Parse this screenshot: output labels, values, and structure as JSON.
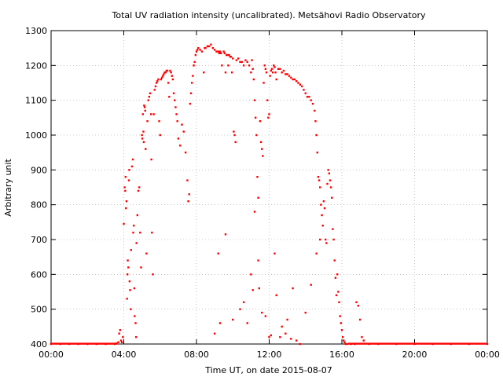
{
  "chart_data": {
    "type": "scatter",
    "title": "Total UV radiation intensity (uncalibrated). Metsähovi Radio Observatory",
    "xlabel": "Time UT, on date 2015-08-07",
    "ylabel": "Arbitrary unit",
    "xlim": [
      "00:00",
      "24:00"
    ],
    "ylim": [
      400,
      1300
    ],
    "x_ticks": [
      "00:00",
      "04:00",
      "08:00",
      "12:00",
      "16:00",
      "20:00",
      "00:00"
    ],
    "y_ticks": [
      400,
      500,
      600,
      700,
      800,
      900,
      1000,
      1100,
      1200,
      1300
    ],
    "grid": true,
    "point_color": "#ff0000",
    "x_unit": "hours UT",
    "series": [
      {
        "points": [
          [
            0.0,
            400
          ],
          [
            0.5,
            400
          ],
          [
            1.0,
            400
          ],
          [
            1.5,
            400
          ],
          [
            2.0,
            400
          ],
          [
            2.5,
            400
          ],
          [
            3.0,
            400
          ],
          [
            3.5,
            400
          ],
          [
            3.6,
            402
          ],
          [
            3.7,
            405
          ],
          [
            3.75,
            430
          ],
          [
            3.8,
            440
          ],
          [
            3.85,
            410
          ],
          [
            3.9,
            405
          ],
          [
            3.95,
            420
          ],
          [
            4.0,
            745
          ],
          [
            4.05,
            850
          ],
          [
            4.08,
            840
          ],
          [
            4.1,
            880
          ],
          [
            4.12,
            790
          ],
          [
            4.15,
            810
          ],
          [
            4.18,
            530
          ],
          [
            4.2,
            600
          ],
          [
            4.22,
            640
          ],
          [
            4.25,
            620
          ],
          [
            4.28,
            870
          ],
          [
            4.3,
            900
          ],
          [
            4.32,
            580
          ],
          [
            4.35,
            555
          ],
          [
            4.38,
            500
          ],
          [
            4.4,
            670
          ],
          [
            4.45,
            910
          ],
          [
            4.5,
            930
          ],
          [
            4.52,
            720
          ],
          [
            4.55,
            740
          ],
          [
            4.58,
            560
          ],
          [
            4.6,
            480
          ],
          [
            4.65,
            460
          ],
          [
            4.68,
            420
          ],
          [
            4.7,
            690
          ],
          [
            4.75,
            770
          ],
          [
            4.8,
            840
          ],
          [
            4.85,
            850
          ],
          [
            4.9,
            720
          ],
          [
            4.95,
            620
          ],
          [
            5.0,
            1000
          ],
          [
            5.02,
            990
          ],
          [
            5.05,
            1060
          ],
          [
            5.08,
            1010
          ],
          [
            5.1,
            980
          ],
          [
            5.12,
            1085
          ],
          [
            5.15,
            1080
          ],
          [
            5.18,
            1070
          ],
          [
            5.2,
            960
          ],
          [
            5.25,
            660
          ],
          [
            5.3,
            1040
          ],
          [
            5.35,
            1100
          ],
          [
            5.4,
            1110
          ],
          [
            5.45,
            1120
          ],
          [
            5.5,
            1060
          ],
          [
            5.52,
            930
          ],
          [
            5.55,
            720
          ],
          [
            5.6,
            600
          ],
          [
            5.65,
            1060
          ],
          [
            5.7,
            1130
          ],
          [
            5.75,
            1140
          ],
          [
            5.8,
            1150
          ],
          [
            5.85,
            1155
          ],
          [
            5.9,
            1160
          ],
          [
            5.95,
            1040
          ],
          [
            6.0,
            1000
          ],
          [
            6.05,
            1160
          ],
          [
            6.1,
            1165
          ],
          [
            6.15,
            1170
          ],
          [
            6.2,
            1175
          ],
          [
            6.25,
            1180
          ],
          [
            6.3,
            1180
          ],
          [
            6.35,
            1185
          ],
          [
            6.4,
            1185
          ],
          [
            6.45,
            1150
          ],
          [
            6.5,
            1110
          ],
          [
            6.55,
            1185
          ],
          [
            6.6,
            1180
          ],
          [
            6.65,
            1170
          ],
          [
            6.7,
            1160
          ],
          [
            6.75,
            1120
          ],
          [
            6.8,
            1100
          ],
          [
            6.85,
            1080
          ],
          [
            6.9,
            1060
          ],
          [
            6.95,
            1040
          ],
          [
            7.0,
            990
          ],
          [
            7.1,
            970
          ],
          [
            7.2,
            1030
          ],
          [
            7.3,
            1010
          ],
          [
            7.4,
            950
          ],
          [
            7.5,
            870
          ],
          [
            7.55,
            810
          ],
          [
            7.6,
            830
          ],
          [
            7.65,
            1090
          ],
          [
            7.7,
            1120
          ],
          [
            7.75,
            1150
          ],
          [
            7.8,
            1170
          ],
          [
            7.85,
            1200
          ],
          [
            7.9,
            1210
          ],
          [
            7.95,
            1230
          ],
          [
            8.0,
            1240
          ],
          [
            8.05,
            1245
          ],
          [
            8.1,
            1250
          ],
          [
            8.2,
            1245
          ],
          [
            8.3,
            1240
          ],
          [
            8.4,
            1180
          ],
          [
            8.45,
            1250
          ],
          [
            8.5,
            1250
          ],
          [
            8.6,
            1255
          ],
          [
            8.7,
            1255
          ],
          [
            8.8,
            1260
          ],
          [
            8.9,
            1250
          ],
          [
            9.0,
            1245
          ],
          [
            9.1,
            1240
          ],
          [
            9.2,
            1240
          ],
          [
            9.25,
            1235
          ],
          [
            9.3,
            1240
          ],
          [
            9.35,
            1235
          ],
          [
            9.4,
            1200
          ],
          [
            9.5,
            1240
          ],
          [
            9.55,
            1235
          ],
          [
            9.6,
            1180
          ],
          [
            9.65,
            1230
          ],
          [
            9.7,
            1230
          ],
          [
            9.75,
            1200
          ],
          [
            9.8,
            1230
          ],
          [
            9.85,
            1225
          ],
          [
            9.9,
            1225
          ],
          [
            9.95,
            1180
          ],
          [
            10.0,
            1220
          ],
          [
            10.05,
            1010
          ],
          [
            10.1,
            1000
          ],
          [
            10.15,
            980
          ],
          [
            10.2,
            1215
          ],
          [
            10.3,
            1220
          ],
          [
            10.4,
            1210
          ],
          [
            10.5,
            1210
          ],
          [
            10.6,
            1200
          ],
          [
            10.7,
            1215
          ],
          [
            10.8,
            1210
          ],
          [
            10.9,
            1200
          ],
          [
            11.0,
            1180
          ],
          [
            11.05,
            1215
          ],
          [
            11.1,
            1190
          ],
          [
            11.15,
            1160
          ],
          [
            11.2,
            1100
          ],
          [
            11.25,
            1050
          ],
          [
            11.3,
            1000
          ],
          [
            11.35,
            880
          ],
          [
            11.4,
            820
          ],
          [
            11.45,
            560
          ],
          [
            11.5,
            1040
          ],
          [
            11.55,
            980
          ],
          [
            11.6,
            960
          ],
          [
            11.65,
            940
          ],
          [
            11.7,
            1150
          ],
          [
            11.75,
            1200
          ],
          [
            11.8,
            1190
          ],
          [
            11.85,
            1180
          ],
          [
            11.9,
            1100
          ],
          [
            11.95,
            1050
          ],
          [
            12.0,
            1060
          ],
          [
            12.05,
            1170
          ],
          [
            12.1,
            1185
          ],
          [
            12.15,
            1190
          ],
          [
            12.2,
            1180
          ],
          [
            12.25,
            1200
          ],
          [
            12.3,
            1195
          ],
          [
            12.35,
            1180
          ],
          [
            12.4,
            1160
          ],
          [
            12.5,
            1190
          ],
          [
            12.6,
            1190
          ],
          [
            12.7,
            1180
          ],
          [
            12.8,
            1185
          ],
          [
            12.9,
            1175
          ],
          [
            13.0,
            1175
          ],
          [
            13.1,
            1170
          ],
          [
            13.2,
            1165
          ],
          [
            13.3,
            1160
          ],
          [
            13.4,
            1160
          ],
          [
            13.5,
            1155
          ],
          [
            13.6,
            1150
          ],
          [
            13.7,
            1145
          ],
          [
            13.8,
            1140
          ],
          [
            13.9,
            1130
          ],
          [
            14.0,
            1120
          ],
          [
            14.1,
            1110
          ],
          [
            14.2,
            1110
          ],
          [
            14.3,
            1100
          ],
          [
            14.4,
            1090
          ],
          [
            14.5,
            1070
          ],
          [
            14.55,
            1040
          ],
          [
            14.6,
            1000
          ],
          [
            14.65,
            950
          ],
          [
            14.7,
            880
          ],
          [
            14.75,
            870
          ],
          [
            14.8,
            850
          ],
          [
            14.85,
            800
          ],
          [
            14.9,
            770
          ],
          [
            14.95,
            740
          ],
          [
            15.0,
            810
          ],
          [
            15.05,
            790
          ],
          [
            15.1,
            700
          ],
          [
            15.15,
            690
          ],
          [
            15.2,
            860
          ],
          [
            15.25,
            900
          ],
          [
            15.3,
            890
          ],
          [
            15.35,
            870
          ],
          [
            15.4,
            850
          ],
          [
            15.45,
            820
          ],
          [
            15.5,
            730
          ],
          [
            15.55,
            700
          ],
          [
            15.6,
            640
          ],
          [
            15.65,
            590
          ],
          [
            15.7,
            540
          ],
          [
            15.75,
            600
          ],
          [
            15.8,
            550
          ],
          [
            15.85,
            520
          ],
          [
            15.9,
            480
          ],
          [
            15.95,
            460
          ],
          [
            16.0,
            440
          ],
          [
            16.05,
            420
          ],
          [
            16.1,
            410
          ],
          [
            16.15,
            405
          ],
          [
            16.2,
            400
          ],
          [
            16.3,
            400
          ],
          [
            16.5,
            400
          ],
          [
            16.7,
            400
          ],
          [
            16.8,
            520
          ],
          [
            16.9,
            510
          ],
          [
            17.0,
            470
          ],
          [
            17.1,
            420
          ],
          [
            17.2,
            410
          ],
          [
            17.5,
            400
          ],
          [
            18.0,
            400
          ],
          [
            19.0,
            400
          ],
          [
            20.0,
            400
          ],
          [
            21.0,
            400
          ],
          [
            22.0,
            400
          ],
          [
            23.0,
            400
          ],
          [
            24.0,
            400
          ],
          [
            9.2,
            660
          ],
          [
            9.6,
            715
          ],
          [
            10.4,
            500
          ],
          [
            10.8,
            460
          ],
          [
            11.2,
            780
          ],
          [
            11.4,
            640
          ],
          [
            11.6,
            490
          ],
          [
            11.8,
            480
          ],
          [
            12.0,
            420
          ],
          [
            12.1,
            425
          ],
          [
            12.3,
            660
          ],
          [
            12.6,
            420
          ],
          [
            12.9,
            430
          ],
          [
            13.2,
            415
          ],
          [
            13.5,
            410
          ],
          [
            13.7,
            400
          ],
          [
            14.0,
            490
          ],
          [
            14.3,
            570
          ],
          [
            14.6,
            660
          ],
          [
            14.8,
            700
          ],
          [
            9.0,
            430
          ],
          [
            9.3,
            460
          ],
          [
            10.0,
            470
          ],
          [
            10.6,
            520
          ],
          [
            11.0,
            600
          ],
          [
            11.1,
            555
          ],
          [
            12.4,
            540
          ],
          [
            12.7,
            450
          ],
          [
            13.0,
            470
          ],
          [
            13.3,
            560
          ]
        ]
      }
    ]
  }
}
